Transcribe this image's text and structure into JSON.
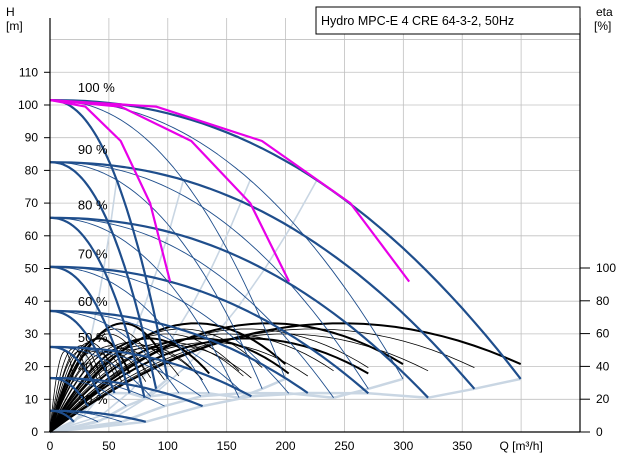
{
  "chart_data": {
    "type": "line",
    "title": "Hydro MPC-E 4 CRE 64-3-2, 50Hz",
    "y_label": [
      "H",
      "[m]"
    ],
    "x_label": "Q [m³/h]",
    "y2_label": [
      "eta",
      "[%]"
    ],
    "x_ticks": [
      "0",
      "50",
      "100",
      "150",
      "200",
      "250",
      "300",
      "350",
      "Q [m³/h]"
    ],
    "y_ticks": [
      "0",
      "10",
      "20",
      "30",
      "40",
      "50",
      "60",
      "70",
      "80",
      "90",
      "100",
      "110"
    ],
    "y2_ticks": [
      "0",
      "20",
      "40",
      "60",
      "80",
      "100"
    ],
    "xlim": [
      0,
      450
    ],
    "ylim": [
      0,
      120
    ],
    "y2lim": [
      0,
      100
    ],
    "grid": true,
    "colors": {
      "head_curve": "#1f4e8c",
      "system_curve": "#e800e8",
      "efficiency_curve": "#000000",
      "boundary_curve": "#c9d6e3",
      "grid": "#c0c0c0"
    },
    "series": [
      {
        "name": "100 %",
        "label_at": [
          22,
          104
        ],
        "shutoff_head": 101.5,
        "q_max_per_pump": 103,
        "end_heads": [
          94,
          87,
          70,
          46
        ]
      },
      {
        "name": "90 %",
        "label_at": [
          22,
          85
        ],
        "shutoff_head": 82.5
      },
      {
        "name": "80 %",
        "label_at": [
          22,
          68
        ],
        "shutoff_head": 65.5
      },
      {
        "name": "70 %",
        "label_at": [
          22,
          53
        ],
        "shutoff_head": 50.5
      },
      {
        "name": "60 %",
        "label_at": [
          22,
          38.5
        ],
        "shutoff_head": 37
      },
      {
        "name": "50 %",
        "label_at": [
          22,
          27.5
        ],
        "shutoff_head": 26
      },
      {
        "name": "40 %",
        "label_at": [
          22,
          18.5
        ],
        "shutoff_head": 16.5
      },
      {
        "name": "30 %",
        "label_at": [
          22,
          8.5
        ],
        "shutoff_head": 6.5
      }
    ],
    "system_curves": [
      {
        "q": [
          0,
          30,
          60,
          85,
          102
        ],
        "h": [
          101.5,
          99.5,
          89,
          70,
          46
        ]
      },
      {
        "q": [
          0,
          60,
          120,
          170,
          203
        ],
        "h": [
          101.5,
          99.5,
          89,
          70,
          46
        ]
      },
      {
        "q": [
          0,
          90,
          180,
          255,
          305
        ],
        "h": [
          101.5,
          99.5,
          89,
          70,
          46
        ]
      }
    ]
  }
}
